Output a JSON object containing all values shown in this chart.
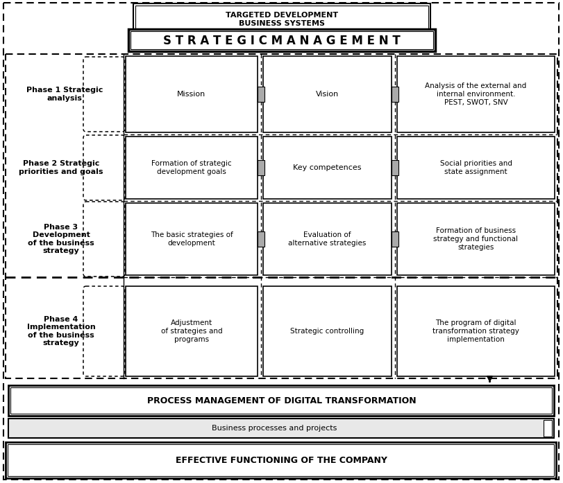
{
  "title_box1": "TARGETED DEVELOPMENT\nBUSINESS SYSTEMS",
  "title_box2": "S T R A T E G I C M A N A G E M E N T",
  "phase1_label": "Phase 1 Strategic\nanalysis",
  "phase2_label": "Phase 2 Strategic\npriorities and goals",
  "phase3_label": "Phase 3\nDevelopment\nof the business\nstrategy",
  "phase4_label": "Phase 4\nImplementation\nof the business\nstrategy",
  "cell_mission": "Mission",
  "cell_vision": "Vision",
  "cell_analysis": "Analysis of the external and\ninternal environment.\nPEST, SWOT, SNV",
  "cell_formation": "Formation of strategic\ndevelopment goals",
  "cell_key": "Key competences",
  "cell_social": "Social priorities and\nstate assignment",
  "cell_basic": "The basic strategies of\ndevelopment",
  "cell_evaluation": "Evaluation of\nalternative strategies",
  "cell_business": "Formation of business\nstrategy and functional\nstrategies",
  "cell_adjustment": "Adjustment\nof strategies and\nprograms",
  "cell_controlling": "Strategic controlling",
  "cell_digital": "The program of digital\ntransformation strategy\nimplementation",
  "box_process": "PROCESS MANAGEMENT OF DIGITAL TRANSFORMATION",
  "box_business": "Business processes and projects",
  "box_effective": "EFFECTIVE FUNCTIONING OF THE COMPANY",
  "bg_color": "#ffffff"
}
